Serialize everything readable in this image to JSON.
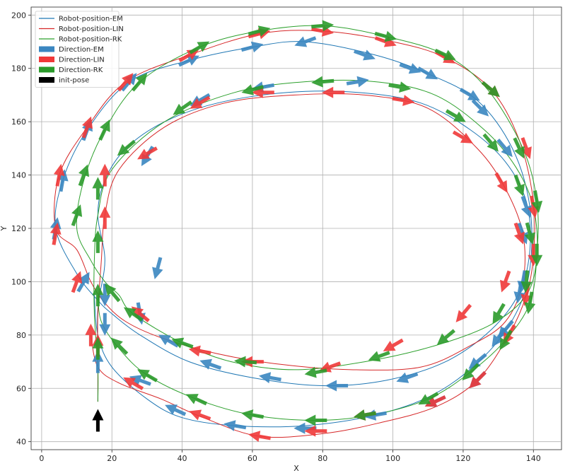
{
  "chart_data": {
    "type": "line",
    "xlabel": "X",
    "ylabel": "Y",
    "xlim": [
      -3,
      148
    ],
    "ylim": [
      37,
      203
    ],
    "x_ticks": [
      0,
      20,
      40,
      60,
      80,
      100,
      120,
      140
    ],
    "y_ticks": [
      40,
      60,
      80,
      100,
      120,
      140,
      160,
      180,
      200
    ],
    "grid": true,
    "legend_position": "top-left",
    "legend": [
      {
        "label": "Robot-position-EM",
        "kind": "line",
        "color": "#1f77b4"
      },
      {
        "label": "Robot-position-LIN",
        "kind": "line",
        "color": "#d62728"
      },
      {
        "label": "Robot-position-RK",
        "kind": "line",
        "color": "#2ca02c"
      },
      {
        "label": "Direction-EM",
        "kind": "patch",
        "color": "#3a86c0"
      },
      {
        "label": "Direction-LIN",
        "kind": "patch",
        "color": "#f03838"
      },
      {
        "label": "Direction-RK",
        "kind": "patch",
        "color": "#2a9a2a"
      },
      {
        "label": "init-pose",
        "kind": "patch",
        "color": "#000000"
      }
    ],
    "series": [
      {
        "name": "Robot-position-EM",
        "color": "#1f77b4",
        "points": [
          [
            16,
            55
          ],
          [
            16,
            70
          ],
          [
            16,
            90
          ],
          [
            18,
            108
          ],
          [
            16,
            125
          ],
          [
            18,
            138
          ],
          [
            24,
            150
          ],
          [
            35,
            160
          ],
          [
            50,
            167
          ],
          [
            70,
            171
          ],
          [
            90,
            171
          ],
          [
            108,
            167
          ],
          [
            122,
            157
          ],
          [
            132,
            145
          ],
          [
            138,
            130
          ],
          [
            139,
            112
          ],
          [
            136,
            96
          ],
          [
            128,
            82
          ],
          [
            115,
            70
          ],
          [
            98,
            63
          ],
          [
            80,
            61
          ],
          [
            60,
            64
          ],
          [
            42,
            70
          ],
          [
            28,
            80
          ],
          [
            20,
            88
          ],
          [
            16,
            93
          ],
          [
            10,
            103
          ],
          [
            4,
            120
          ],
          [
            6,
            138
          ],
          [
            13,
            157
          ],
          [
            25,
            175
          ],
          [
            42,
            183
          ],
          [
            60,
            188
          ],
          [
            75,
            190
          ],
          [
            95,
            185
          ],
          [
            110,
            178
          ],
          [
            124,
            168
          ],
          [
            134,
            150
          ],
          [
            139,
            128
          ],
          [
            139,
            105
          ],
          [
            135,
            88
          ],
          [
            126,
            72
          ],
          [
            112,
            58
          ],
          [
            95,
            50
          ],
          [
            75,
            46
          ],
          [
            55,
            46
          ],
          [
            40,
            49
          ],
          [
            30,
            56
          ],
          [
            20,
            68
          ],
          [
            16,
            80
          ],
          [
            15,
            95
          ]
        ]
      },
      {
        "name": "Robot-position-LIN",
        "color": "#d62728",
        "points": [
          [
            16,
            55
          ],
          [
            16,
            70
          ],
          [
            16,
            88
          ],
          [
            17,
            108
          ],
          [
            18,
            125
          ],
          [
            22,
            142
          ],
          [
            35,
            158
          ],
          [
            52,
            167
          ],
          [
            72,
            170
          ],
          [
            92,
            170
          ],
          [
            110,
            165
          ],
          [
            124,
            150
          ],
          [
            132,
            135
          ],
          [
            137,
            118
          ],
          [
            137,
            100
          ],
          [
            132,
            85
          ],
          [
            122,
            76
          ],
          [
            108,
            68
          ],
          [
            88,
            67
          ],
          [
            68,
            69
          ],
          [
            50,
            73
          ],
          [
            34,
            79
          ],
          [
            24,
            85
          ],
          [
            18,
            92
          ],
          [
            14,
            100
          ],
          [
            10,
            112
          ],
          [
            4,
            120
          ],
          [
            5,
            140
          ],
          [
            13,
            158
          ],
          [
            24,
            175
          ],
          [
            42,
            185
          ],
          [
            62,
            193
          ],
          [
            80,
            194
          ],
          [
            100,
            190
          ],
          [
            115,
            184
          ],
          [
            128,
            172
          ],
          [
            136,
            153
          ],
          [
            140,
            130
          ],
          [
            140,
            110
          ],
          [
            138,
            95
          ],
          [
            133,
            80
          ],
          [
            124,
            63
          ],
          [
            112,
            53
          ],
          [
            96,
            47
          ],
          [
            80,
            43
          ],
          [
            62,
            42
          ],
          [
            46,
            49
          ],
          [
            34,
            56
          ],
          [
            22,
            62
          ],
          [
            16,
            68
          ],
          [
            14,
            80
          ]
        ]
      },
      {
        "name": "Robot-position-RK",
        "color": "#2ca02c",
        "points": [
          [
            16,
            55
          ],
          [
            16,
            68
          ],
          [
            15,
            88
          ],
          [
            15,
            108
          ],
          [
            16,
            125
          ],
          [
            20,
            142
          ],
          [
            35,
            160
          ],
          [
            55,
            171
          ],
          [
            75,
            175
          ],
          [
            95,
            175
          ],
          [
            112,
            170
          ],
          [
            126,
            157
          ],
          [
            135,
            143
          ],
          [
            140,
            128
          ],
          [
            141,
            110
          ],
          [
            138,
            95
          ],
          [
            128,
            84
          ],
          [
            112,
            76
          ],
          [
            92,
            70
          ],
          [
            72,
            67
          ],
          [
            54,
            70
          ],
          [
            40,
            77
          ],
          [
            26,
            88
          ],
          [
            22,
            95
          ],
          [
            18,
            100
          ],
          [
            14,
            108
          ],
          [
            10,
            120
          ],
          [
            12,
            138
          ],
          [
            18,
            157
          ],
          [
            28,
            175
          ],
          [
            45,
            188
          ],
          [
            62,
            194
          ],
          [
            80,
            196
          ],
          [
            98,
            192
          ],
          [
            115,
            185
          ],
          [
            127,
            172
          ],
          [
            137,
            150
          ],
          [
            141,
            130
          ],
          [
            141,
            110
          ],
          [
            139,
            92
          ],
          [
            132,
            78
          ],
          [
            122,
            66
          ],
          [
            110,
            56
          ],
          [
            94,
            50
          ],
          [
            78,
            48
          ],
          [
            60,
            50
          ],
          [
            44,
            56
          ],
          [
            30,
            65
          ],
          [
            22,
            75
          ],
          [
            17,
            85
          ],
          [
            16,
            95
          ]
        ]
      }
    ],
    "arrows": {
      "EM": [
        [
          16,
          70,
          90
        ],
        [
          18,
          84,
          270
        ],
        [
          28,
          88,
          280
        ],
        [
          33,
          105,
          255
        ],
        [
          30,
          147,
          240
        ],
        [
          45,
          168,
          210
        ],
        [
          63,
          173,
          190
        ],
        [
          75,
          190,
          200
        ],
        [
          90,
          175,
          10
        ],
        [
          105,
          180,
          340
        ],
        [
          122,
          170,
          330
        ],
        [
          132,
          150,
          310
        ],
        [
          138,
          128,
          290
        ],
        [
          137,
          100,
          260
        ],
        [
          132,
          82,
          230
        ],
        [
          124,
          70,
          220
        ],
        [
          104,
          64,
          200
        ],
        [
          84,
          61,
          180
        ],
        [
          65,
          64,
          170
        ],
        [
          48,
          69,
          160
        ],
        [
          36,
          78,
          150
        ],
        [
          28,
          63,
          160
        ],
        [
          12,
          100,
          60
        ],
        [
          4,
          120,
          80
        ],
        [
          6,
          138,
          80
        ],
        [
          13,
          157,
          70
        ],
        [
          25,
          175,
          50
        ],
        [
          42,
          183,
          25
        ],
        [
          60,
          188,
          15
        ],
        [
          92,
          185,
          340
        ],
        [
          110,
          178,
          330
        ],
        [
          125,
          165,
          315
        ],
        [
          137,
          118,
          290
        ],
        [
          136,
          96,
          260
        ],
        [
          130,
          79,
          235
        ],
        [
          124,
          63,
          225
        ],
        [
          112,
          55,
          205
        ],
        [
          95,
          50,
          190
        ],
        [
          75,
          45,
          180
        ],
        [
          55,
          46,
          170
        ],
        [
          38,
          52,
          155
        ],
        [
          18,
          95,
          270
        ]
      ],
      "LIN": [
        [
          16,
          76,
          90
        ],
        [
          18,
          124,
          90
        ],
        [
          18,
          140,
          90
        ],
        [
          30,
          148,
          210
        ],
        [
          45,
          167,
          210
        ],
        [
          63,
          171,
          180
        ],
        [
          83,
          171,
          180
        ],
        [
          103,
          168,
          350
        ],
        [
          120,
          154,
          330
        ],
        [
          131,
          137,
          300
        ],
        [
          136,
          118,
          290
        ],
        [
          132,
          100,
          250
        ],
        [
          120,
          88,
          230
        ],
        [
          100,
          76,
          210
        ],
        [
          82,
          68,
          200
        ],
        [
          60,
          70,
          180
        ],
        [
          45,
          74,
          170
        ],
        [
          28,
          88,
          140
        ],
        [
          10,
          100,
          70
        ],
        [
          4,
          118,
          80
        ],
        [
          5,
          140,
          80
        ],
        [
          13,
          158,
          70
        ],
        [
          24,
          175,
          50
        ],
        [
          42,
          185,
          30
        ],
        [
          62,
          193,
          15
        ],
        [
          80,
          194,
          350
        ],
        [
          98,
          190,
          340
        ],
        [
          115,
          184,
          330
        ],
        [
          128,
          172,
          320
        ],
        [
          138,
          150,
          290
        ],
        [
          140,
          128,
          280
        ],
        [
          140,
          110,
          270
        ],
        [
          138,
          95,
          260
        ],
        [
          133,
          80,
          240
        ],
        [
          124,
          63,
          225
        ],
        [
          112,
          55,
          205
        ],
        [
          92,
          50,
          190
        ],
        [
          78,
          44,
          180
        ],
        [
          62,
          42,
          170
        ],
        [
          45,
          50,
          160
        ],
        [
          26,
          62,
          150
        ],
        [
          14,
          80,
          90
        ]
      ],
      "RK": [
        [
          16,
          75,
          90
        ],
        [
          16,
          95,
          90
        ],
        [
          16,
          115,
          90
        ],
        [
          16,
          135,
          90
        ],
        [
          24,
          150,
          220
        ],
        [
          40,
          165,
          215
        ],
        [
          60,
          172,
          195
        ],
        [
          80,
          175,
          185
        ],
        [
          102,
          173,
          350
        ],
        [
          118,
          162,
          330
        ],
        [
          128,
          152,
          310
        ],
        [
          136,
          136,
          290
        ],
        [
          139,
          118,
          285
        ],
        [
          138,
          100,
          265
        ],
        [
          130,
          88,
          240
        ],
        [
          115,
          79,
          220
        ],
        [
          96,
          72,
          200
        ],
        [
          78,
          66,
          190
        ],
        [
          58,
          70,
          175
        ],
        [
          40,
          77,
          160
        ],
        [
          26,
          88,
          145
        ],
        [
          20,
          96,
          130
        ],
        [
          10,
          125,
          70
        ],
        [
          12,
          140,
          70
        ],
        [
          18,
          157,
          65
        ],
        [
          28,
          175,
          50
        ],
        [
          45,
          188,
          30
        ],
        [
          62,
          194,
          15
        ],
        [
          80,
          196,
          5
        ],
        [
          98,
          192,
          345
        ],
        [
          115,
          185,
          335
        ],
        [
          128,
          172,
          320
        ],
        [
          136,
          150,
          295
        ],
        [
          141,
          130,
          280
        ],
        [
          141,
          110,
          270
        ],
        [
          139,
          92,
          260
        ],
        [
          132,
          78,
          240
        ],
        [
          122,
          66,
          225
        ],
        [
          110,
          56,
          210
        ],
        [
          92,
          50,
          190
        ],
        [
          78,
          48,
          180
        ],
        [
          60,
          50,
          170
        ],
        [
          44,
          56,
          155
        ],
        [
          30,
          65,
          150
        ],
        [
          22,
          76,
          135
        ]
      ],
      "init": [
        [
          16,
          48,
          90
        ]
      ]
    }
  }
}
